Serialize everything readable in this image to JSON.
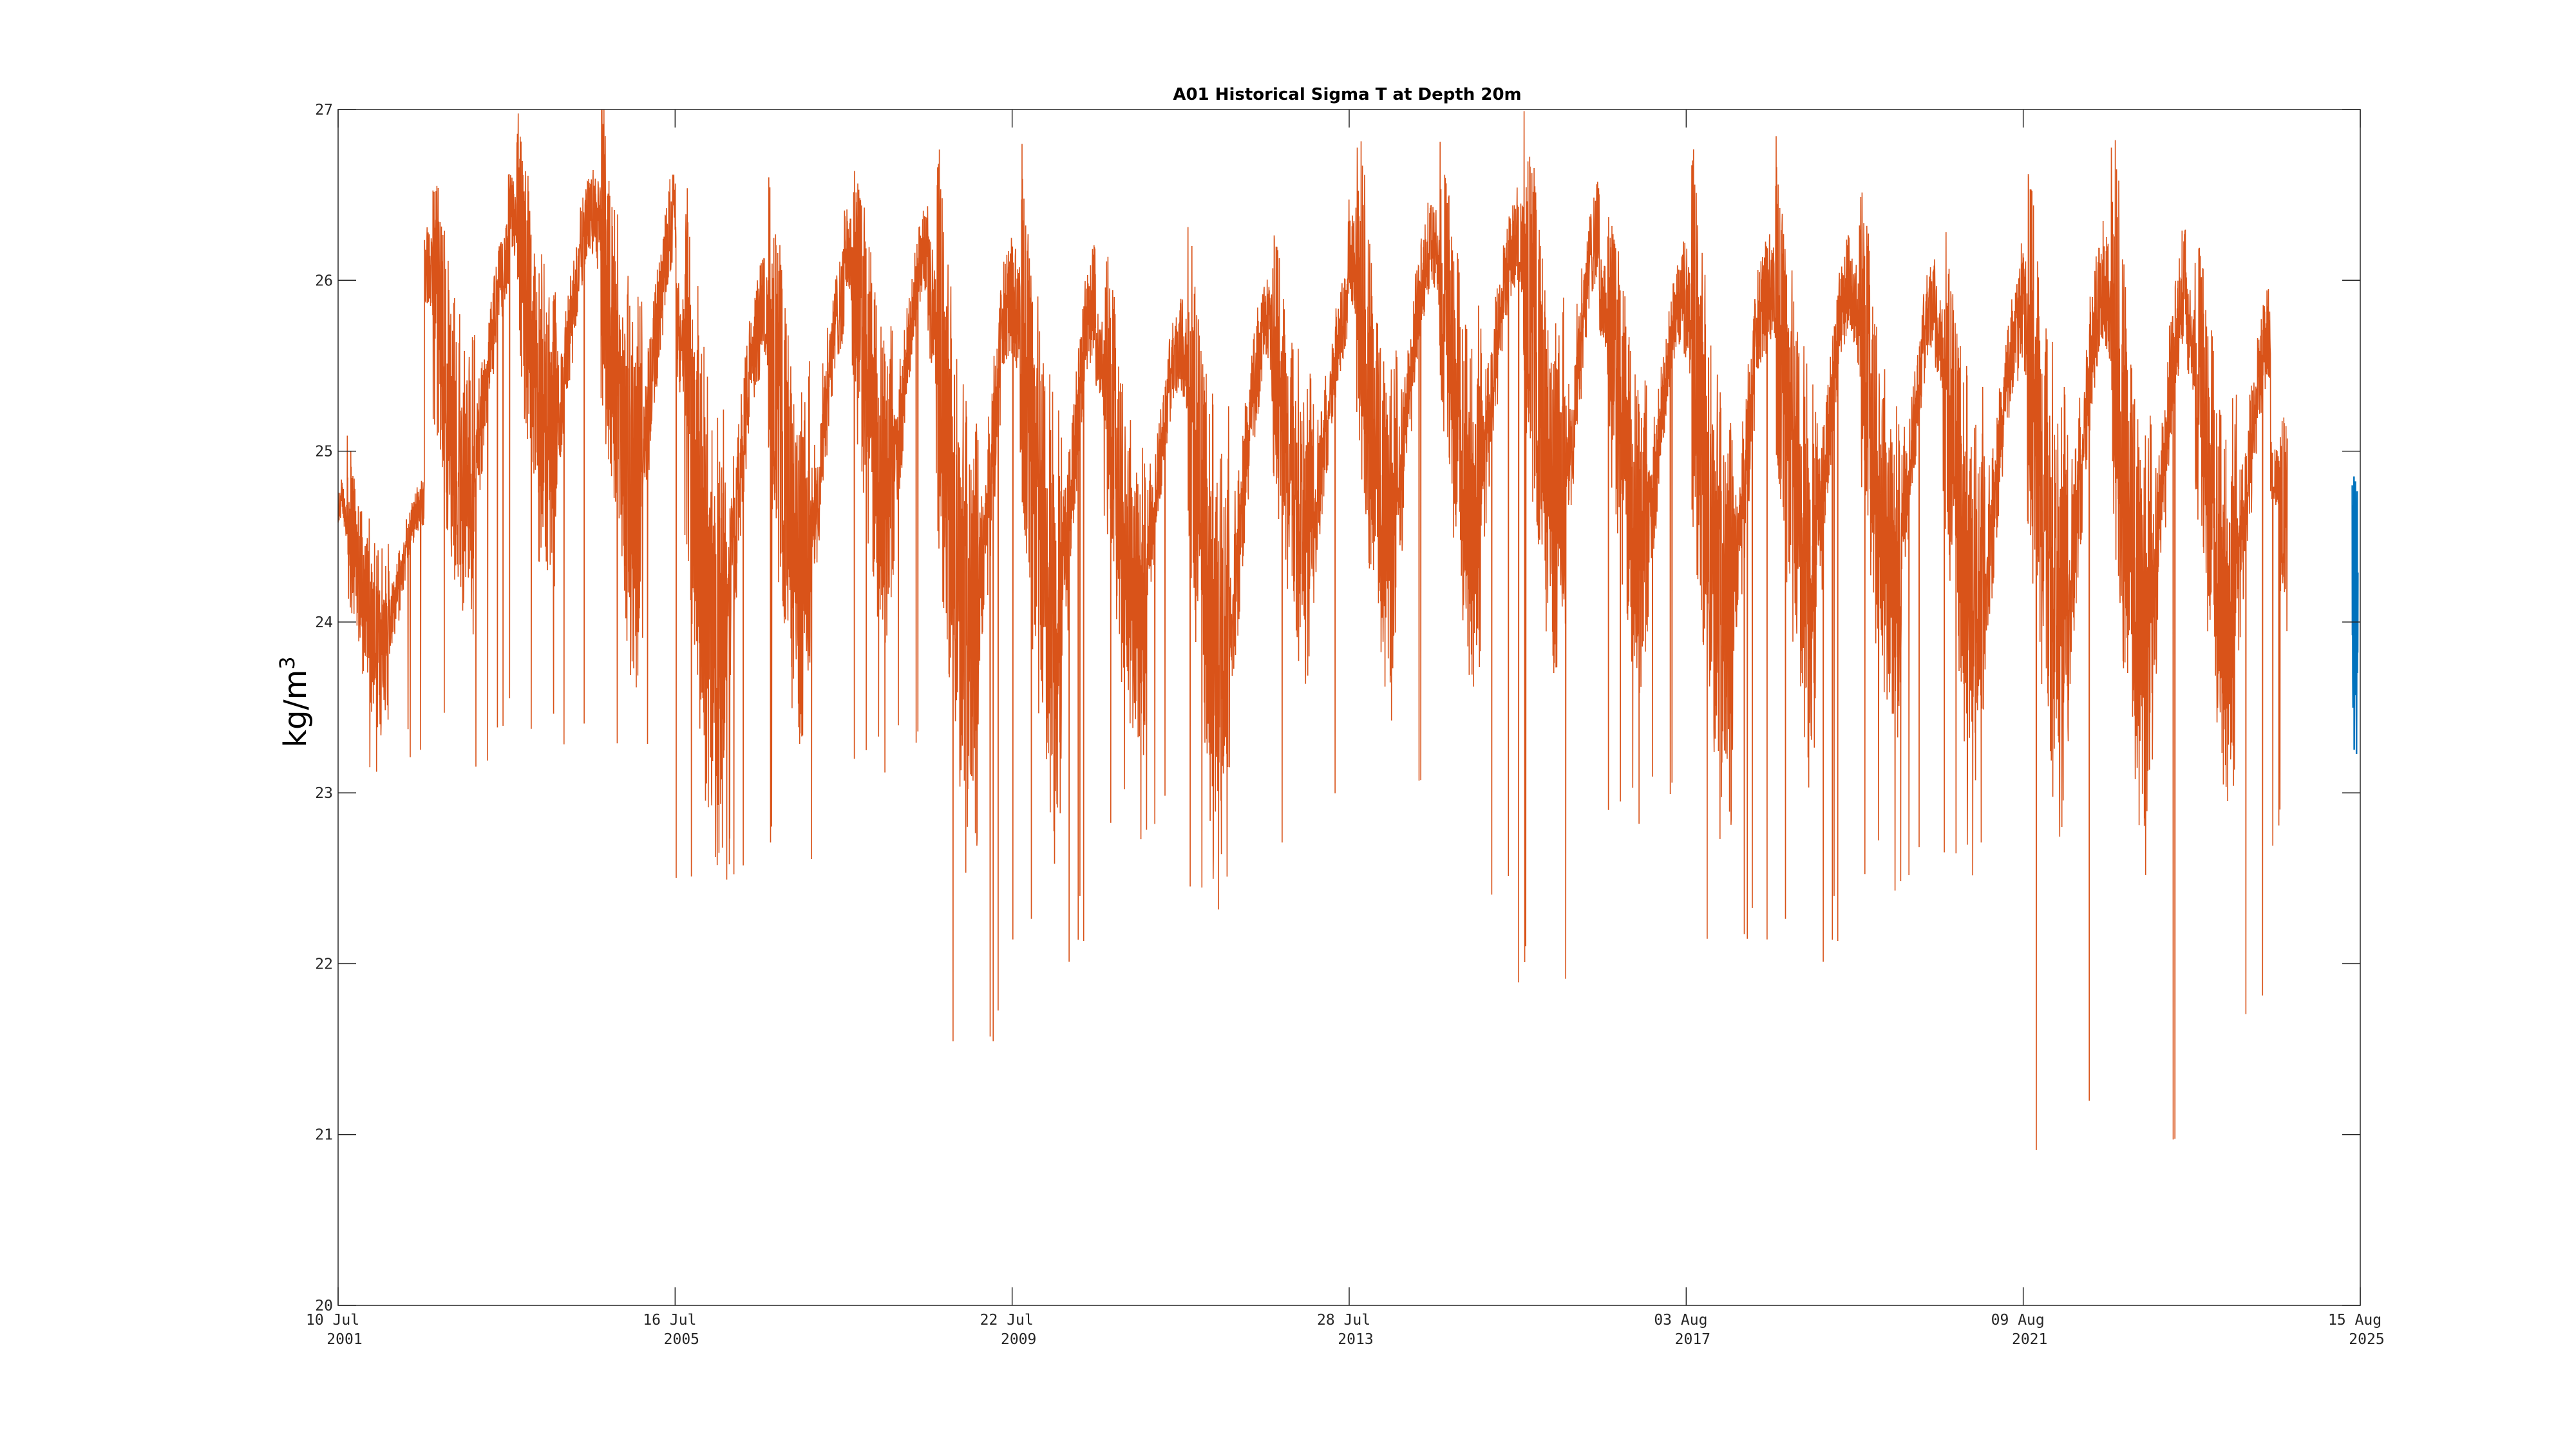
{
  "chart_data": {
    "type": "line",
    "title": "A01 Historical Sigma T at Depth 20m",
    "ylabel": "kg/m",
    "ylabel_sup": "3",
    "xlabel": "",
    "ylim": [
      20,
      27
    ],
    "xlim": [
      "2001-07-10",
      "2025-08-15"
    ],
    "grid": false,
    "legend": "none",
    "yticks": [
      "20",
      "21",
      "22",
      "23",
      "24",
      "25",
      "26",
      "27"
    ],
    "xticks": [
      {
        "date": "2001-07-10",
        "line1": "10 Jul",
        "line2": "2001"
      },
      {
        "date": "2005-07-16",
        "line1": "16 Jul",
        "line2": "2005"
      },
      {
        "date": "2009-07-22",
        "line1": "22 Jul",
        "line2": "2009"
      },
      {
        "date": "2013-07-28",
        "line1": "28 Jul",
        "line2": "2013"
      },
      {
        "date": "2017-08-03",
        "line1": "03 Aug",
        "line2": "2017"
      },
      {
        "date": "2021-08-09",
        "line1": "09 Aug",
        "line2": "2021"
      },
      {
        "date": "2025-08-15",
        "line1": "15 Aug",
        "line2": "2025"
      }
    ],
    "series": [
      {
        "color": "#D95319",
        "values": [
          {
            "year": 2001.53,
            "base": 24.7,
            "amp": 0.8,
            "low": 23.0
          },
          {
            "year": 2002.55,
            "base": 26.1,
            "amp": 1.3,
            "low": 23.1
          },
          {
            "year": 2003.55,
            "base": 26.4,
            "amp": 1.3,
            "low": 23.2
          },
          {
            "year": 2004.55,
            "base": 26.4,
            "amp": 1.6,
            "low": 23.1
          },
          {
            "year": 2005.55,
            "base": 25.7,
            "amp": 1.8,
            "low": 22.4
          },
          {
            "year": 2006.55,
            "base": 25.9,
            "amp": 1.6,
            "low": 22.5
          },
          {
            "year": 2007.55,
            "base": 26.2,
            "amp": 1.4,
            "low": 23.0
          },
          {
            "year": 2008.55,
            "base": 25.9,
            "amp": 2.0,
            "low": 21.5
          },
          {
            "year": 2009.55,
            "base": 25.9,
            "amp": 1.9,
            "low": 22.0
          },
          {
            "year": 2010.55,
            "base": 25.6,
            "amp": 1.4,
            "low": 22.7
          },
          {
            "year": 2011.55,
            "base": 25.6,
            "amp": 1.8,
            "low": 22.2
          },
          {
            "year": 2012.55,
            "base": 25.8,
            "amp": 1.3,
            "low": 22.7
          },
          {
            "year": 2013.55,
            "base": 26.2,
            "amp": 1.6,
            "low": 22.8
          },
          {
            "year": 2014.55,
            "base": 26.2,
            "amp": 1.5,
            "low": 22.4
          },
          {
            "year": 2015.55,
            "base": 26.3,
            "amp": 1.6,
            "low": 21.8
          },
          {
            "year": 2016.55,
            "base": 25.9,
            "amp": 1.4,
            "low": 22.7
          },
          {
            "year": 2017.55,
            "base": 25.9,
            "amp": 1.9,
            "low": 22.1
          },
          {
            "year": 2018.55,
            "base": 26.0,
            "amp": 1.7,
            "low": 22.0
          },
          {
            "year": 2019.55,
            "base": 25.9,
            "amp": 1.5,
            "low": 22.4
          },
          {
            "year": 2020.55,
            "base": 25.7,
            "amp": 1.6,
            "low": 22.4
          },
          {
            "year": 2021.55,
            "base": 25.9,
            "amp": 1.9,
            "low": 20.9
          },
          {
            "year": 2022.55,
            "base": 26.0,
            "amp": 2.0,
            "low": 20.7
          },
          {
            "year": 2023.55,
            "base": 25.7,
            "amp": 1.6,
            "low": 21.7
          },
          {
            "year": 2024.55,
            "base": 24.9,
            "amp": 1.0,
            "low": 22.6
          }
        ]
      },
      {
        "color": "#0072BD",
        "values": [
          {
            "year": 2025.57,
            "base": 24.9,
            "amp": 0.7,
            "low": 23.2
          }
        ]
      }
    ]
  }
}
